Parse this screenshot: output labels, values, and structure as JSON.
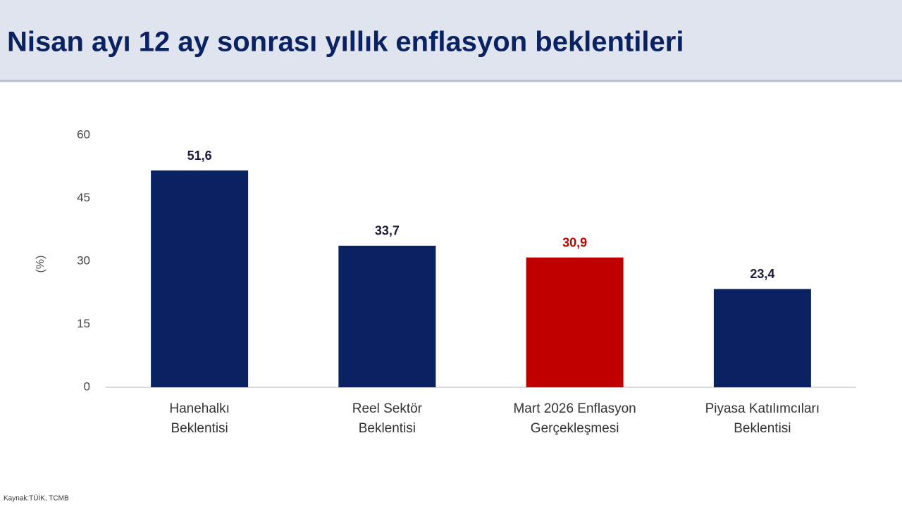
{
  "chart_data": {
    "type": "bar",
    "title": "Nisan ayı 12 ay sonrası yıllık enflasyon beklentileri",
    "y_label": "(%)",
    "source": "Kaynak:TÜİK, TCMB",
    "categories": [
      [
        "Hanehalkı",
        "Beklentisi"
      ],
      [
        "Reel Sektör",
        "Beklentisi"
      ],
      [
        "Mart 2026 Enflasyon",
        "Gerçekleşmesi"
      ],
      [
        "Piyasa Katılımcıları",
        "Beklentisi"
      ]
    ],
    "values": [
      51.6,
      33.7,
      30.9,
      23.4
    ],
    "value_labels": [
      "51,6",
      "33,7",
      "30,9",
      "23,4"
    ],
    "colors": [
      "#0b2262",
      "#0b2262",
      "#c00000",
      "#0b2262"
    ],
    "ylim": [
      0,
      60
    ],
    "yticks": [
      0,
      15,
      30,
      45,
      60
    ],
    "grid": false
  }
}
